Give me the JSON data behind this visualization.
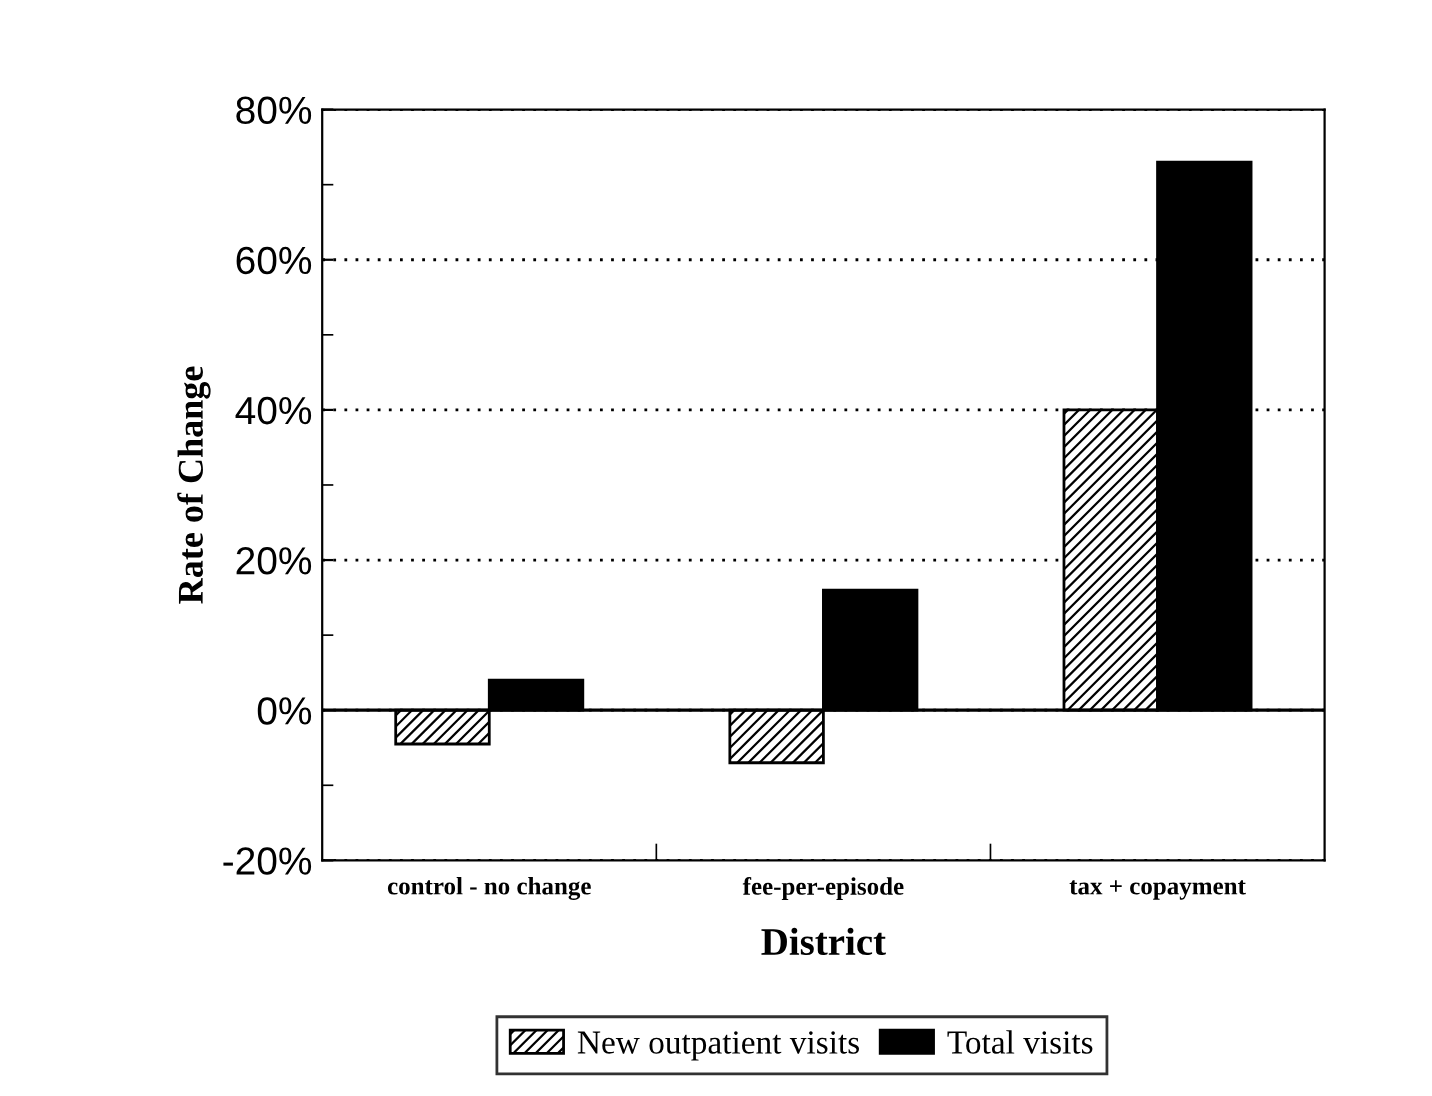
{
  "chart_data": {
    "type": "bar",
    "xlabel": "District",
    "ylabel": "Rate of Change",
    "categories": [
      "control - no change",
      "fee-per-episode",
      "tax + copayment"
    ],
    "series": [
      {
        "name": "New outpatient visits",
        "color": "#000000",
        "values": [
          -4.5,
          -7,
          40
        ]
      },
      {
        "name": "Total visits",
        "color": "#000000",
        "values": [
          4,
          16,
          73
        ]
      }
    ],
    "ylim": [
      -20,
      80
    ],
    "yticks": [
      {
        "value": -20,
        "label": "-20%"
      },
      {
        "value": 0,
        "label": "0%"
      },
      {
        "value": 20,
        "label": "20%"
      },
      {
        "value": 40,
        "label": "40%"
      },
      {
        "value": 60,
        "label": "60%"
      },
      {
        "value": 80,
        "label": "80%"
      }
    ],
    "grid": "y",
    "legend": "bottom"
  }
}
